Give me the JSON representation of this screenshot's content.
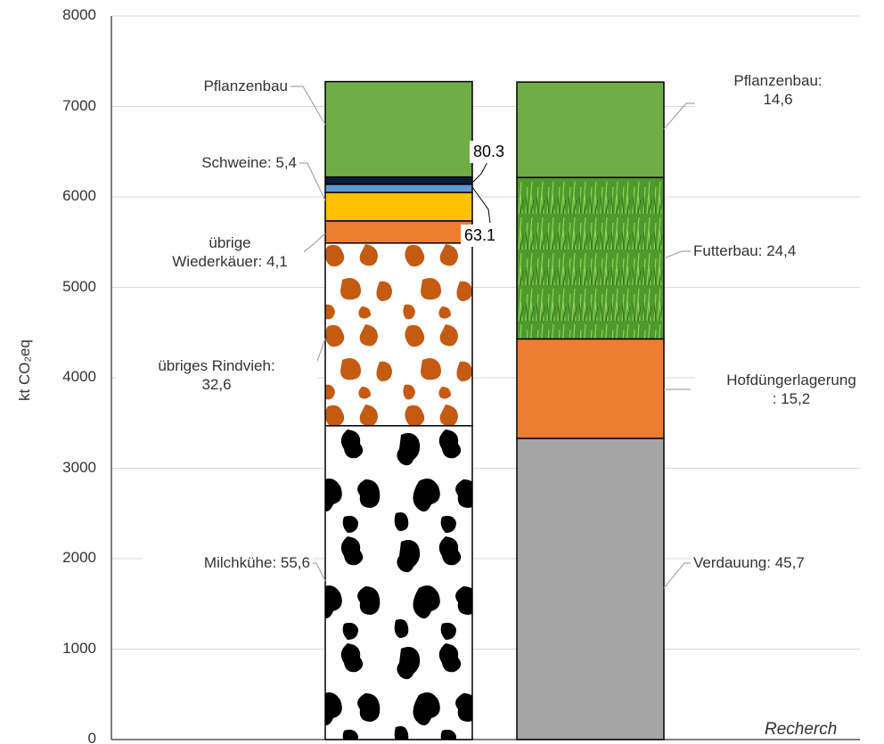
{
  "chart_data": {
    "type": "stacked-bar",
    "y_label": "kt CO₂eq",
    "categories": [
      null,
      null
    ],
    "ylim": [
      0,
      8000
    ],
    "yticks": [
      0,
      1000,
      2000,
      3000,
      4000,
      5000,
      6000,
      7000,
      8000
    ],
    "grid": true,
    "series": [
      {
        "name": "Milchkühe: 55,6",
        "color": "#ffffff",
        "pattern": "black-spots",
        "values": [
          3470,
          null
        ]
      },
      {
        "name": "übriges Rindvieh:\n32,6",
        "color": "#ffffff",
        "pattern": "brown-spots",
        "values": [
          2020,
          null
        ]
      },
      {
        "name": "übrige\nWiederkäuer: 4,1",
        "color": "#ed7d31",
        "values": [
          245,
          null
        ]
      },
      {
        "name": "Schweine: 5,4",
        "color": "#ffc000",
        "values": [
          315,
          null
        ]
      },
      {
        "color": "#5b9bd5",
        "values": [
          90,
          null
        ]
      },
      {
        "color": "#0d1b3e",
        "values": [
          80,
          null
        ]
      },
      {
        "name": "Pflanzenbau",
        "color": "#70ad47",
        "values": [
          1055,
          null
        ]
      },
      {
        "name": "Verdauung: 45,7",
        "color": "#a5a5a5",
        "values": [
          null,
          3330
        ]
      },
      {
        "name": "Hofdüngerlagerung\n: 15,2",
        "color": "#ed7d31",
        "values": [
          null,
          1100
        ]
      },
      {
        "name": "Futterbau: 24,4",
        "color": "#4f9a2c",
        "pattern": "grass",
        "values": [
          null,
          1785
        ]
      },
      {
        "name": "Pflanzenbau:\n14,6",
        "color": "#70ad47",
        "values": [
          null,
          1055
        ]
      }
    ],
    "annotations": [
      "80.3",
      "63.1"
    ],
    "source": "Recherch"
  }
}
